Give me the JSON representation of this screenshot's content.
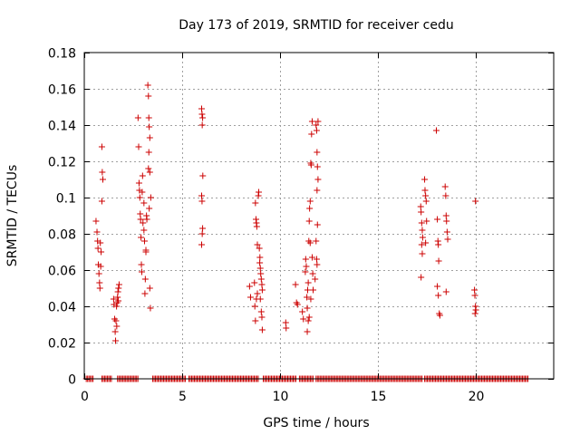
{
  "chart_data": {
    "type": "scatter",
    "title": "Day 173 of 2019, SRMTID for receiver cedu",
    "xlabel": "GPS time / hours",
    "ylabel": "SRMTID / TECUs",
    "xlim": [
      0,
      24
    ],
    "ylim": [
      0,
      0.18
    ],
    "x_ticks": [
      0,
      5,
      10,
      15,
      20
    ],
    "x_tick_labels": [
      "0",
      "5",
      "10",
      "15",
      "20"
    ],
    "y_ticks": [
      0,
      0.02,
      0.04,
      0.06,
      0.08,
      0.1,
      0.12,
      0.14,
      0.16,
      0.18
    ],
    "y_tick_labels": [
      "0",
      "0.02",
      "0.04",
      "0.06",
      "0.08",
      "0.1",
      "0.12",
      "0.14",
      "0.16",
      "0.18"
    ],
    "grid": true,
    "marker": "+",
    "series_color": "#cc0000",
    "zero_band_ranges": [
      [
        0.1,
        0.5
      ],
      [
        0.9,
        1.45
      ],
      [
        1.7,
        2.75
      ],
      [
        3.5,
        5.2
      ],
      [
        5.35,
        8.95
      ],
      [
        9.15,
        10.85
      ],
      [
        11.0,
        11.7
      ],
      [
        11.85,
        17.3
      ],
      [
        17.4,
        22.7
      ]
    ],
    "points": [
      {
        "x": 0.6,
        "y": 0.087
      },
      {
        "x": 0.65,
        "y": 0.081
      },
      {
        "x": 0.68,
        "y": 0.076
      },
      {
        "x": 0.7,
        "y": 0.072
      },
      {
        "x": 0.72,
        "y": 0.063
      },
      {
        "x": 0.75,
        "y": 0.058
      },
      {
        "x": 0.78,
        "y": 0.053
      },
      {
        "x": 0.8,
        "y": 0.05
      },
      {
        "x": 0.82,
        "y": 0.075
      },
      {
        "x": 0.84,
        "y": 0.062
      },
      {
        "x": 0.86,
        "y": 0.07
      },
      {
        "x": 0.9,
        "y": 0.128
      },
      {
        "x": 0.92,
        "y": 0.114
      },
      {
        "x": 0.95,
        "y": 0.11
      },
      {
        "x": 0.9,
        "y": 0.098
      },
      {
        "x": 1.5,
        "y": 0.044
      },
      {
        "x": 1.52,
        "y": 0.041
      },
      {
        "x": 1.55,
        "y": 0.033
      },
      {
        "x": 1.58,
        "y": 0.026
      },
      {
        "x": 1.6,
        "y": 0.021
      },
      {
        "x": 1.62,
        "y": 0.032
      },
      {
        "x": 1.65,
        "y": 0.04
      },
      {
        "x": 1.68,
        "y": 0.042
      },
      {
        "x": 1.7,
        "y": 0.045
      },
      {
        "x": 1.72,
        "y": 0.048
      },
      {
        "x": 1.75,
        "y": 0.05
      },
      {
        "x": 1.78,
        "y": 0.052
      },
      {
        "x": 1.66,
        "y": 0.029
      },
      {
        "x": 1.74,
        "y": 0.043
      },
      {
        "x": 2.75,
        "y": 0.144
      },
      {
        "x": 2.78,
        "y": 0.128
      },
      {
        "x": 2.8,
        "y": 0.108
      },
      {
        "x": 2.82,
        "y": 0.104
      },
      {
        "x": 2.84,
        "y": 0.1
      },
      {
        "x": 2.86,
        "y": 0.091
      },
      {
        "x": 2.88,
        "y": 0.088
      },
      {
        "x": 2.9,
        "y": 0.078
      },
      {
        "x": 2.92,
        "y": 0.063
      },
      {
        "x": 2.94,
        "y": 0.059
      },
      {
        "x": 2.96,
        "y": 0.103
      },
      {
        "x": 2.98,
        "y": 0.112
      },
      {
        "x": 3.0,
        "y": 0.086
      },
      {
        "x": 3.05,
        "y": 0.082
      },
      {
        "x": 3.08,
        "y": 0.076
      },
      {
        "x": 3.1,
        "y": 0.047
      },
      {
        "x": 3.12,
        "y": 0.055
      },
      {
        "x": 3.15,
        "y": 0.071
      },
      {
        "x": 3.18,
        "y": 0.09
      },
      {
        "x": 3.2,
        "y": 0.088
      },
      {
        "x": 3.25,
        "y": 0.162
      },
      {
        "x": 3.28,
        "y": 0.156
      },
      {
        "x": 3.3,
        "y": 0.144
      },
      {
        "x": 3.32,
        "y": 0.139
      },
      {
        "x": 3.35,
        "y": 0.133
      },
      {
        "x": 3.3,
        "y": 0.125
      },
      {
        "x": 3.28,
        "y": 0.116
      },
      {
        "x": 3.35,
        "y": 0.114
      },
      {
        "x": 3.4,
        "y": 0.1
      },
      {
        "x": 3.32,
        "y": 0.094
      },
      {
        "x": 3.35,
        "y": 0.05
      },
      {
        "x": 3.38,
        "y": 0.039
      },
      {
        "x": 3.15,
        "y": 0.07
      },
      {
        "x": 3.05,
        "y": 0.097
      },
      {
        "x": 6.0,
        "y": 0.149
      },
      {
        "x": 6.02,
        "y": 0.146
      },
      {
        "x": 6.05,
        "y": 0.144
      },
      {
        "x": 6.03,
        "y": 0.14
      },
      {
        "x": 6.06,
        "y": 0.112
      },
      {
        "x": 6.0,
        "y": 0.101
      },
      {
        "x": 6.02,
        "y": 0.098
      },
      {
        "x": 6.05,
        "y": 0.083
      },
      {
        "x": 6.03,
        "y": 0.08
      },
      {
        "x": 6.0,
        "y": 0.074
      },
      {
        "x": 8.45,
        "y": 0.051
      },
      {
        "x": 8.5,
        "y": 0.045
      },
      {
        "x": 8.75,
        "y": 0.097
      },
      {
        "x": 8.78,
        "y": 0.088
      },
      {
        "x": 8.8,
        "y": 0.086
      },
      {
        "x": 8.82,
        "y": 0.084
      },
      {
        "x": 8.85,
        "y": 0.074
      },
      {
        "x": 8.7,
        "y": 0.053
      },
      {
        "x": 8.72,
        "y": 0.04
      },
      {
        "x": 8.75,
        "y": 0.032
      },
      {
        "x": 8.8,
        "y": 0.044
      },
      {
        "x": 8.85,
        "y": 0.047
      },
      {
        "x": 8.9,
        "y": 0.101
      },
      {
        "x": 8.92,
        "y": 0.103
      },
      {
        "x": 8.95,
        "y": 0.072
      },
      {
        "x": 8.97,
        "y": 0.064
      },
      {
        "x": 9.0,
        "y": 0.061
      },
      {
        "x": 9.02,
        "y": 0.058
      },
      {
        "x": 9.05,
        "y": 0.055
      },
      {
        "x": 9.08,
        "y": 0.052
      },
      {
        "x": 9.1,
        "y": 0.049
      },
      {
        "x": 9.0,
        "y": 0.044
      },
      {
        "x": 9.05,
        "y": 0.037
      },
      {
        "x": 9.08,
        "y": 0.034
      },
      {
        "x": 9.1,
        "y": 0.027
      },
      {
        "x": 8.98,
        "y": 0.067
      },
      {
        "x": 10.3,
        "y": 0.031
      },
      {
        "x": 10.32,
        "y": 0.028
      },
      {
        "x": 10.8,
        "y": 0.052
      },
      {
        "x": 10.85,
        "y": 0.042
      },
      {
        "x": 10.9,
        "y": 0.041
      },
      {
        "x": 11.15,
        "y": 0.037
      },
      {
        "x": 11.2,
        "y": 0.033
      },
      {
        "x": 11.3,
        "y": 0.059
      },
      {
        "x": 11.32,
        "y": 0.066
      },
      {
        "x": 11.35,
        "y": 0.062
      },
      {
        "x": 11.38,
        "y": 0.045
      },
      {
        "x": 11.4,
        "y": 0.039
      },
      {
        "x": 11.42,
        "y": 0.049
      },
      {
        "x": 11.45,
        "y": 0.053
      },
      {
        "x": 11.4,
        "y": 0.026
      },
      {
        "x": 11.45,
        "y": 0.032
      },
      {
        "x": 11.5,
        "y": 0.034
      },
      {
        "x": 11.48,
        "y": 0.076
      },
      {
        "x": 11.5,
        "y": 0.087
      },
      {
        "x": 11.55,
        "y": 0.075
      },
      {
        "x": 11.52,
        "y": 0.094
      },
      {
        "x": 11.55,
        "y": 0.098
      },
      {
        "x": 11.58,
        "y": 0.119
      },
      {
        "x": 11.6,
        "y": 0.118
      },
      {
        "x": 11.62,
        "y": 0.135
      },
      {
        "x": 11.65,
        "y": 0.142
      },
      {
        "x": 11.65,
        "y": 0.067
      },
      {
        "x": 11.68,
        "y": 0.058
      },
      {
        "x": 11.7,
        "y": 0.049
      },
      {
        "x": 11.58,
        "y": 0.044
      },
      {
        "x": 11.85,
        "y": 0.14
      },
      {
        "x": 11.88,
        "y": 0.137
      },
      {
        "x": 11.9,
        "y": 0.125
      },
      {
        "x": 11.92,
        "y": 0.117
      },
      {
        "x": 11.95,
        "y": 0.11
      },
      {
        "x": 11.9,
        "y": 0.104
      },
      {
        "x": 11.92,
        "y": 0.085
      },
      {
        "x": 11.85,
        "y": 0.076
      },
      {
        "x": 11.88,
        "y": 0.066
      },
      {
        "x": 11.9,
        "y": 0.063
      },
      {
        "x": 11.95,
        "y": 0.142
      },
      {
        "x": 11.8,
        "y": 0.055
      },
      {
        "x": 17.2,
        "y": 0.095
      },
      {
        "x": 17.22,
        "y": 0.092
      },
      {
        "x": 17.25,
        "y": 0.086
      },
      {
        "x": 17.28,
        "y": 0.082
      },
      {
        "x": 17.3,
        "y": 0.078
      },
      {
        "x": 17.25,
        "y": 0.074
      },
      {
        "x": 17.28,
        "y": 0.069
      },
      {
        "x": 17.22,
        "y": 0.056
      },
      {
        "x": 17.4,
        "y": 0.11
      },
      {
        "x": 17.42,
        "y": 0.104
      },
      {
        "x": 17.45,
        "y": 0.101
      },
      {
        "x": 17.48,
        "y": 0.098
      },
      {
        "x": 17.5,
        "y": 0.087
      },
      {
        "x": 17.45,
        "y": 0.075
      },
      {
        "x": 18.0,
        "y": 0.137
      },
      {
        "x": 18.05,
        "y": 0.088
      },
      {
        "x": 18.08,
        "y": 0.076
      },
      {
        "x": 18.1,
        "y": 0.074
      },
      {
        "x": 18.12,
        "y": 0.065
      },
      {
        "x": 18.05,
        "y": 0.051
      },
      {
        "x": 18.1,
        "y": 0.046
      },
      {
        "x": 18.15,
        "y": 0.036
      },
      {
        "x": 18.18,
        "y": 0.035
      },
      {
        "x": 18.45,
        "y": 0.106
      },
      {
        "x": 18.48,
        "y": 0.101
      },
      {
        "x": 18.5,
        "y": 0.09
      },
      {
        "x": 18.52,
        "y": 0.087
      },
      {
        "x": 18.55,
        "y": 0.081
      },
      {
        "x": 18.58,
        "y": 0.077
      },
      {
        "x": 18.5,
        "y": 0.048
      },
      {
        "x": 20.0,
        "y": 0.098
      },
      {
        "x": 19.95,
        "y": 0.049
      },
      {
        "x": 19.97,
        "y": 0.046
      },
      {
        "x": 20.0,
        "y": 0.04
      },
      {
        "x": 20.02,
        "y": 0.038
      },
      {
        "x": 19.98,
        "y": 0.036
      }
    ]
  }
}
